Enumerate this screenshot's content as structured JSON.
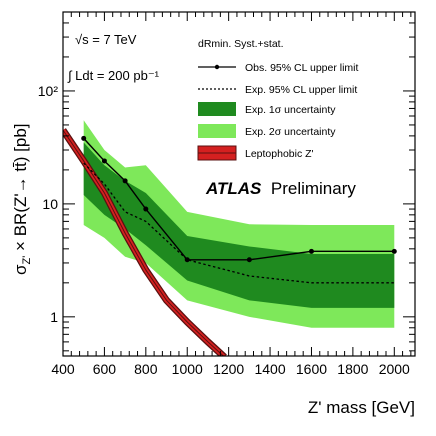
{
  "chart_data": {
    "type": "line",
    "xlabel": "Z' mass [GeV]",
    "ylabel": "σZ' × BR(Z'→ tt̄) [pb]",
    "xlim": [
      400,
      2100
    ],
    "ylim": [
      0.45,
      500
    ],
    "yscale": "log",
    "x_ticks": [
      400,
      600,
      800,
      1000,
      1200,
      1400,
      1600,
      1800,
      2000
    ],
    "y_ticks": [
      {
        "value": 1,
        "label": "1"
      },
      {
        "value": 10,
        "label": "10"
      },
      {
        "value": 100,
        "label": "10²"
      }
    ],
    "grid": false,
    "legend": {
      "placement": "top-right",
      "header": "dRmin. Syst.+stat.",
      "entries": [
        {
          "label": "Obs. 95% CL upper limit",
          "style": "line-marker",
          "color": "#000000"
        },
        {
          "label": "Exp. 95% CL upper limit",
          "style": "dashed",
          "color": "#000000"
        },
        {
          "label": "Exp. 1σ uncertainty",
          "style": "fill",
          "color": "#1f8a1f"
        },
        {
          "label": "Exp. 2σ uncertainty",
          "style": "fill",
          "color": "#7ee85a"
        },
        {
          "label": "Leptophobic Z'",
          "style": "band",
          "color": "#d42020"
        }
      ]
    },
    "annotations": {
      "energy": "√s = 7 TeV",
      "lumi": "∫ Ldt = 200 pb⁻¹",
      "atlas": "ATLAS",
      "atlas_sub": "Preliminary"
    },
    "x": [
      500,
      600,
      700,
      800,
      1000,
      1300,
      1600,
      2000
    ],
    "series": [
      {
        "name": "Obs. 95% CL upper limit",
        "values": [
          38,
          24,
          16,
          9,
          3.2,
          3.2,
          3.8,
          3.8
        ]
      },
      {
        "name": "Exp. 95% CL upper limit",
        "values": [
          23,
          15,
          8.5,
          7,
          3.2,
          2.3,
          2.0,
          2.0
        ]
      },
      {
        "name": "Exp. 1σ lower",
        "values": [
          12,
          8,
          6,
          4.3,
          2.1,
          1.4,
          1.2,
          1.2
        ]
      },
      {
        "name": "Exp. 1σ upper",
        "values": [
          35,
          22,
          16,
          12.5,
          5.2,
          4.2,
          3.6,
          3.6
        ]
      },
      {
        "name": "Exp. 2σ lower",
        "values": [
          6.5,
          5,
          3.4,
          3.0,
          1.4,
          1.0,
          0.8,
          0.8
        ]
      },
      {
        "name": "Exp. 2σ upper",
        "values": [
          55,
          30,
          21,
          22,
          8.5,
          6.6,
          6.5,
          6.5
        ]
      },
      {
        "name": "Leptophobic Z'",
        "x": [
          400,
          500,
          600,
          700,
          800,
          900,
          1000,
          1100,
          1180
        ],
        "values": [
          45,
          24,
          12.5,
          5.5,
          2.6,
          1.4,
          0.9,
          0.6,
          0.44
        ]
      }
    ],
    "colors": {
      "band_1sigma": "#1f8a1f",
      "band_2sigma": "#7ee85a",
      "theory": "#d42020",
      "theory_edge": "#5a1010"
    }
  }
}
